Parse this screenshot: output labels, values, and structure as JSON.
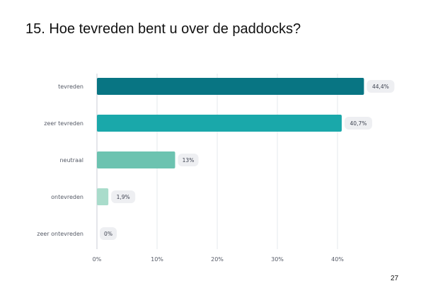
{
  "slide": {
    "title": "15. Hoe tevreden bent u over de paddocks?",
    "page_number": "27"
  },
  "chart_data": {
    "type": "bar",
    "orientation": "horizontal",
    "title": "",
    "xlabel": "",
    "ylabel": "",
    "categories": [
      "tevreden",
      "zeer tevreden",
      "neutraal",
      "ontevreden",
      "zeer ontevreden"
    ],
    "values": [
      44.4,
      40.7,
      13,
      1.9,
      0
    ],
    "value_labels": [
      "44,4%",
      "40,7%",
      "13%",
      "1,9%",
      "0%"
    ],
    "bar_colors": [
      "#087583",
      "#1aa8aa",
      "#6cc3b0",
      "#a9dccb",
      "#cfeee4"
    ],
    "xlim": [
      0,
      50
    ],
    "x_ticks": [
      0,
      10,
      20,
      30,
      40
    ],
    "x_tick_labels": [
      "0%",
      "10%",
      "20%",
      "30%",
      "40%"
    ],
    "grid": "vertical",
    "legend": "none"
  }
}
